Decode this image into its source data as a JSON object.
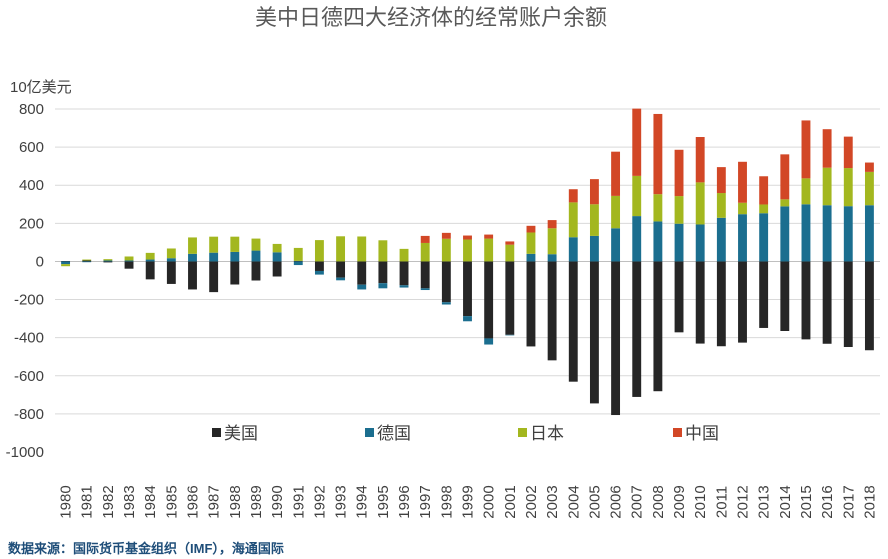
{
  "chart_data": {
    "type": "bar",
    "stacked": true,
    "title": "美中日德四大经济体的经常账户余额",
    "ylabel": "10亿美元",
    "source": "数据来源：国际货币基金组织（IMF），海通国际",
    "ylim": [
      -1000,
      800
    ],
    "yticks": [
      800,
      600,
      400,
      200,
      0,
      -200,
      -400,
      -600,
      -800,
      -1000
    ],
    "grid": true,
    "legend_position": "bottom-inside",
    "categories": [
      "1980",
      "1981",
      "1982",
      "1983",
      "1984",
      "1985",
      "1986",
      "1987",
      "1988",
      "1989",
      "1990",
      "1991",
      "1992",
      "1993",
      "1994",
      "1995",
      "1996",
      "1997",
      "1998",
      "1999",
      "2000",
      "2001",
      "2002",
      "2003",
      "2004",
      "2005",
      "2006",
      "2007",
      "2008",
      "2009",
      "2010",
      "2011",
      "2012",
      "2013",
      "2014",
      "2015",
      "2016",
      "2017",
      "2018"
    ],
    "series": [
      {
        "name": "美国",
        "color": "#262626",
        "values": [
          2,
          5,
          -5,
          -38,
          -94,
          -118,
          -147,
          -161,
          -121,
          -100,
          -79,
          3,
          -50,
          -85,
          -122,
          -114,
          -125,
          -141,
          -214,
          -287,
          -404,
          -385,
          -446,
          -519,
          -631,
          -745,
          -806,
          -711,
          -681,
          -372,
          -431,
          -445,
          -426,
          -349,
          -365,
          -409,
          -432,
          -449,
          -466
        ]
      },
      {
        "name": "德国",
        "color": "#1b6e8f",
        "values": [
          -14,
          -4,
          5,
          5,
          10,
          17,
          40,
          46,
          50,
          57,
          48,
          -19,
          -19,
          -14,
          -25,
          -27,
          -12,
          -9,
          -12,
          -27,
          -32,
          -3,
          40,
          38,
          127,
          134,
          174,
          238,
          210,
          198,
          194,
          229,
          248,
          253,
          289,
          300,
          295,
          290,
          295
        ]
      },
      {
        "name": "日本",
        "color": "#a3b71f",
        "values": [
          -11,
          5,
          7,
          21,
          35,
          51,
          86,
          84,
          80,
          63,
          44,
          68,
          112,
          132,
          131,
          111,
          66,
          97,
          119,
          115,
          120,
          88,
          112,
          136,
          183,
          166,
          170,
          211,
          143,
          145,
          221,
          130,
          60,
          46,
          37,
          136,
          197,
          200,
          175
        ]
      },
      {
        "name": "中国",
        "color": "#d24726",
        "values": [
          0,
          0,
          0,
          0,
          0,
          0,
          0,
          0,
          0,
          0,
          0,
          0,
          0,
          0,
          0,
          0,
          0,
          37,
          31,
          21,
          21,
          17,
          35,
          43,
          69,
          132,
          232,
          353,
          421,
          243,
          238,
          136,
          215,
          148,
          236,
          304,
          202,
          165,
          49
        ]
      }
    ]
  }
}
